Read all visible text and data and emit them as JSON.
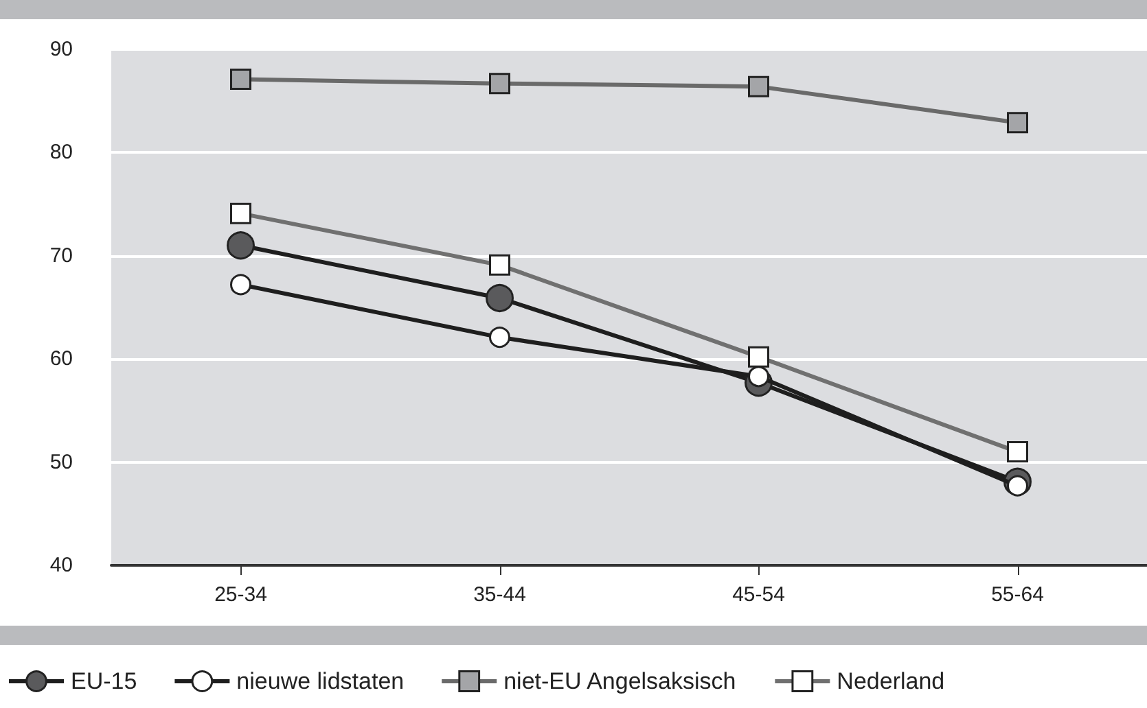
{
  "chart_data": {
    "type": "line",
    "categories": [
      "25-34",
      "35-44",
      "45-54",
      "55-64"
    ],
    "series": [
      {
        "name": "EU-15",
        "color": "#1e1e1e",
        "marker": "circle",
        "colors": [
          "#5a5a5c",
          "#5a5a5c",
          "#5a5a5c",
          "#5a5a5c"
        ],
        "values": [
          71.0,
          65.9,
          57.7,
          48.1
        ]
      },
      {
        "name": "nieuwe lidstaten",
        "color": "#1e1e1e",
        "marker": "circle",
        "colors": [
          "#ffffff",
          "#ffffff",
          "#ffffff",
          "#ffffff"
        ],
        "values": [
          67.2,
          62.1,
          58.3,
          47.7
        ]
      },
      {
        "name": "niet-EU Angelsaksisch",
        "color": "#6a6a6a",
        "marker": "square",
        "colors": [
          "#a4a5a8",
          "#a4a5a8",
          "#a4a5a8",
          "#a4a5a8"
        ],
        "values": [
          87.1,
          86.7,
          86.4,
          82.9
        ]
      },
      {
        "name": "Nederland",
        "color": "#707070",
        "marker": "square",
        "colors": [
          "#ffffff",
          "#ffffff",
          "#ffffff",
          "#ffffff"
        ],
        "values": [
          74.1,
          69.1,
          60.2,
          51.0
        ]
      }
    ],
    "ylim": [
      40,
      90
    ],
    "yticks": [
      40,
      50,
      60,
      70,
      80,
      90
    ],
    "grid": "y",
    "legend": "bottom left"
  }
}
